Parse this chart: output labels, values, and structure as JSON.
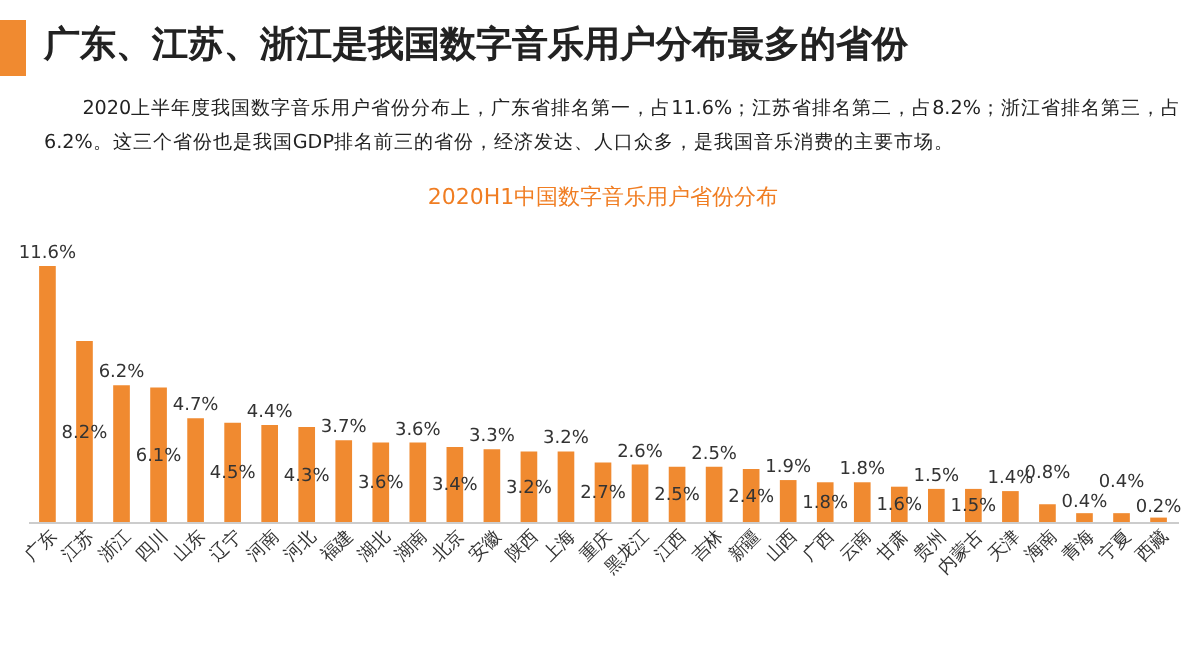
{
  "chart_data": {
    "type": "bar",
    "title": "广东、江苏、浙江是我国数字音乐用户分布最多的省份",
    "subtitle": "2020上半年度我国数字音乐用户省份分布上，广东省排名第一，占11.6%；江苏省排名第二，占8.2%；浙江省排名第三，占6.2%。这三个省份也是我国GDP排名前三的省份，经济发达、人口众多，是我国音乐消费的主要市场。",
    "annotations": [
      "2020H1中国数字音乐用户省份分布"
    ],
    "categories": [
      "广东",
      "江苏",
      "浙江",
      "四川",
      "山东",
      "辽宁",
      "河南",
      "河北",
      "福建",
      "湖北",
      "湖南",
      "北京",
      "安徽",
      "陕西",
      "上海",
      "重庆",
      "黑龙江",
      "江西",
      "吉林",
      "新疆",
      "山西",
      "广西",
      "云南",
      "甘肃",
      "贵州",
      "内蒙古",
      "天津",
      "海南",
      "青海",
      "宁夏",
      "西藏"
    ],
    "values": [
      11.6,
      8.2,
      6.2,
      6.1,
      4.7,
      4.5,
      4.4,
      4.3,
      3.7,
      3.6,
      3.6,
      3.4,
      3.3,
      3.2,
      3.2,
      2.7,
      2.6,
      2.5,
      2.5,
      2.4,
      1.9,
      1.8,
      1.8,
      1.6,
      1.5,
      1.5,
      1.4,
      0.8,
      0.4,
      0.4,
      0.2
    ],
    "value_labels": [
      "11.6%",
      "8.2%",
      "6.2%",
      "6.1%",
      "4.7%",
      "4.5%",
      "4.4%",
      "4.3%",
      "3.7%",
      "3.6%",
      "3.6%",
      "3.4%",
      "3.3%",
      "3.2%",
      "3.2%",
      "2.7%",
      "2.6%",
      "2.5%",
      "2.5%",
      "2.4%",
      "1.9%",
      "1.8%",
      "1.8%",
      "1.6%",
      "1.5%",
      "1.5%",
      "1.4%",
      "0.8%",
      "0.4%",
      "0.4%",
      "0.2%"
    ],
    "color": "#f08a30"
  }
}
